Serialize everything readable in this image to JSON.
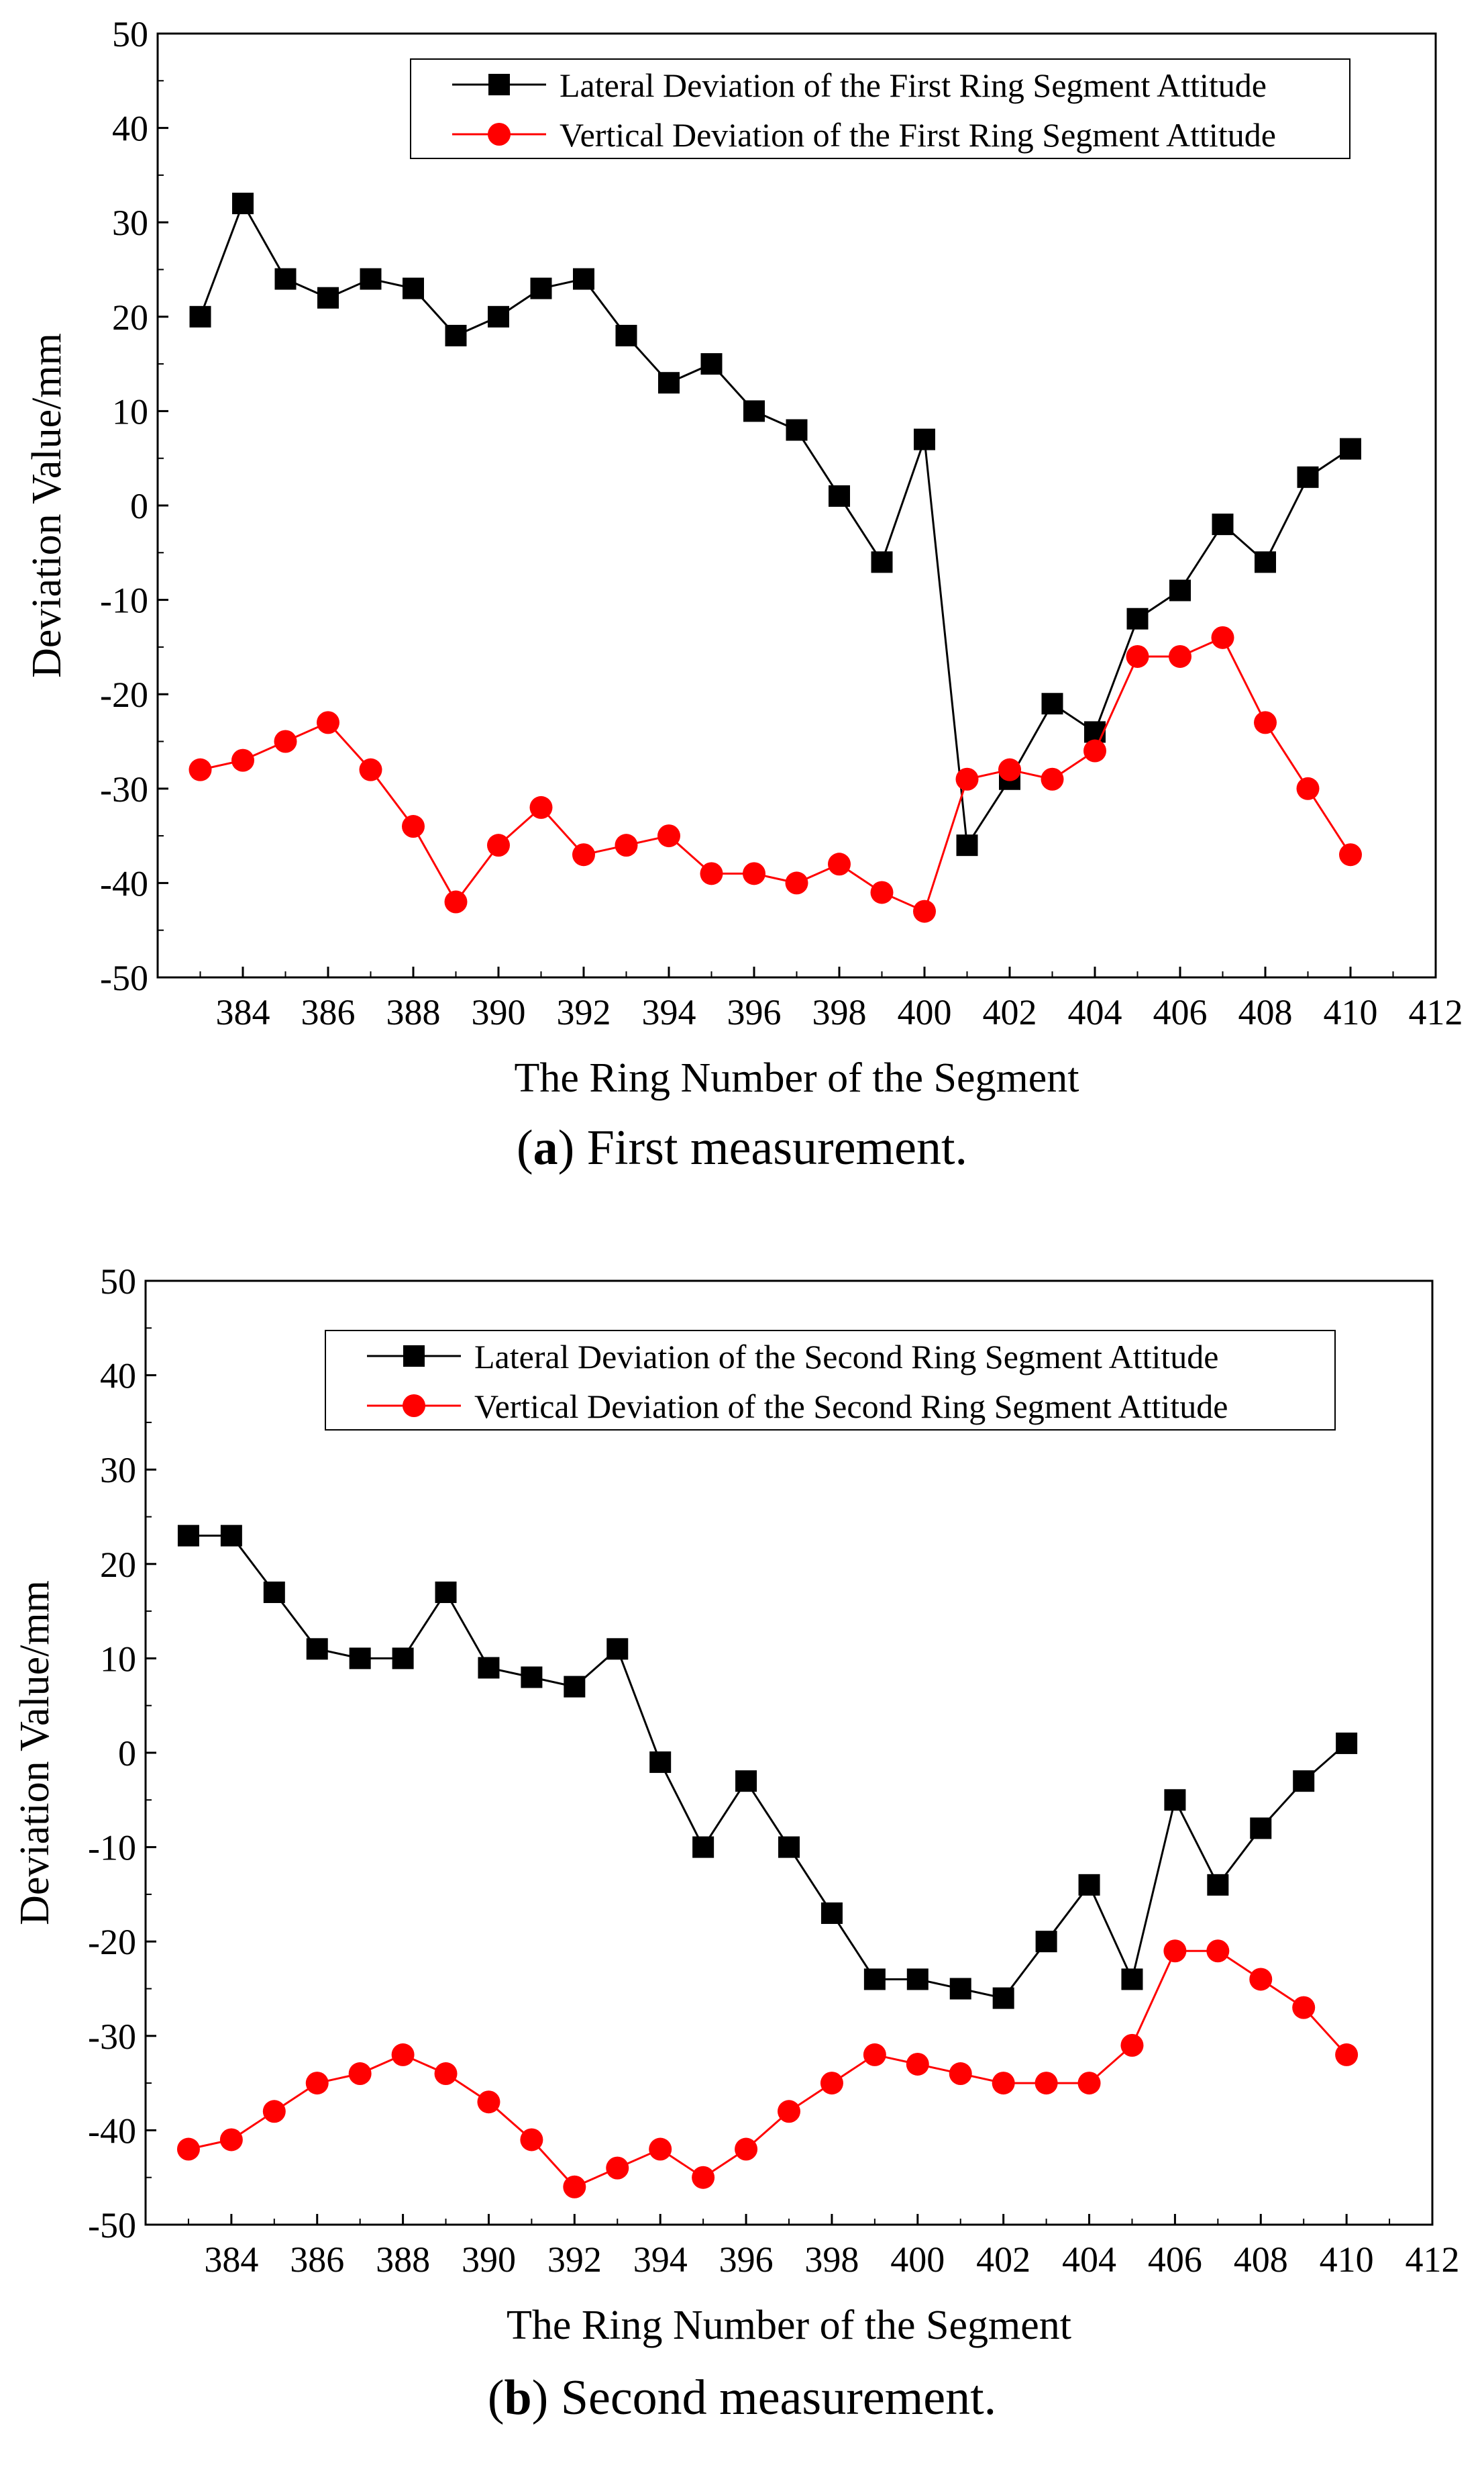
{
  "figure": {
    "panels": [
      {
        "caption_letter": "a",
        "caption_open": "(",
        "caption_close": ")",
        "caption_text": " First measurement."
      },
      {
        "caption_letter": "b",
        "caption_open": "(",
        "caption_close": ")",
        "caption_text": " Second measurement."
      }
    ]
  },
  "chart_data": [
    {
      "type": "line",
      "title": "",
      "xlabel": "The Ring Number of the Segment",
      "ylabel": "Deviation Value/mm",
      "xlim": [
        382,
        412
      ],
      "ylim": [
        -50,
        50
      ],
      "xticks": [
        384,
        386,
        388,
        390,
        392,
        394,
        396,
        398,
        400,
        402,
        404,
        406,
        408,
        410,
        412
      ],
      "yticks": [
        -50,
        -40,
        -30,
        -20,
        -10,
        0,
        10,
        20,
        30,
        40,
        50
      ],
      "legend_position": "top-right",
      "x": [
        383,
        384,
        385,
        386,
        387,
        388,
        389,
        390,
        391,
        392,
        393,
        394,
        395,
        396,
        397,
        398,
        399,
        400,
        401,
        402,
        403,
        404,
        405,
        406,
        407,
        408,
        409,
        410
      ],
      "series": [
        {
          "name": "Lateral Deviation of the First Ring Segment Attitude",
          "color": "#000000",
          "marker": "square",
          "values": [
            20,
            32,
            24,
            22,
            24,
            23,
            18,
            20,
            23,
            24,
            18,
            13,
            15,
            10,
            8,
            1,
            -6,
            7,
            -36,
            -29,
            -21,
            -24,
            -12,
            -9,
            -2,
            -6,
            3,
            6
          ]
        },
        {
          "name": "Vertical Deviation of the First Ring Segment Attitude",
          "color": "#ff0000",
          "marker": "circle",
          "values": [
            -28,
            -27,
            -25,
            -23,
            -28,
            -34,
            -42,
            -36,
            -32,
            -37,
            -36,
            -35,
            -39,
            -39,
            -40,
            -38,
            -41,
            -43,
            -29,
            -28,
            -29,
            -26,
            -16,
            -16,
            -14,
            -23,
            -30,
            -37
          ]
        }
      ]
    },
    {
      "type": "line",
      "title": "",
      "xlabel": "The Ring Number of the Segment",
      "ylabel": "Deviation Value/mm",
      "xlim": [
        382,
        412
      ],
      "ylim": [
        -50,
        50
      ],
      "xticks": [
        384,
        386,
        388,
        390,
        392,
        394,
        396,
        398,
        400,
        402,
        404,
        406,
        408,
        410,
        412
      ],
      "yticks": [
        -50,
        -40,
        -30,
        -20,
        -10,
        0,
        10,
        20,
        30,
        40,
        50
      ],
      "legend_position": "top-right",
      "x": [
        383,
        384,
        385,
        386,
        387,
        388,
        389,
        390,
        391,
        392,
        393,
        394,
        395,
        396,
        397,
        398,
        399,
        400,
        401,
        402,
        403,
        404,
        405,
        406,
        407,
        408,
        409,
        410
      ],
      "series": [
        {
          "name": "Lateral Deviation of the Second Ring Segment Attitude",
          "color": "#000000",
          "marker": "square",
          "values": [
            23,
            23,
            17,
            11,
            10,
            10,
            17,
            9,
            8,
            7,
            11,
            -1,
            -10,
            -3,
            -10,
            -17,
            -24,
            -24,
            -25,
            -26,
            -20,
            -14,
            -24,
            -5,
            -14,
            -8,
            -3,
            1
          ]
        },
        {
          "name": "Vertical Deviation of the Second Ring Segment Attitude",
          "color": "#ff0000",
          "marker": "circle",
          "values": [
            -42,
            -41,
            -38,
            -35,
            -34,
            -32,
            -34,
            -37,
            -41,
            -46,
            -44,
            -42,
            -45,
            -42,
            -38,
            -35,
            -32,
            -33,
            -34,
            -35,
            -35,
            -35,
            -31,
            -21,
            -21,
            -24,
            -27,
            -32
          ]
        }
      ]
    }
  ]
}
